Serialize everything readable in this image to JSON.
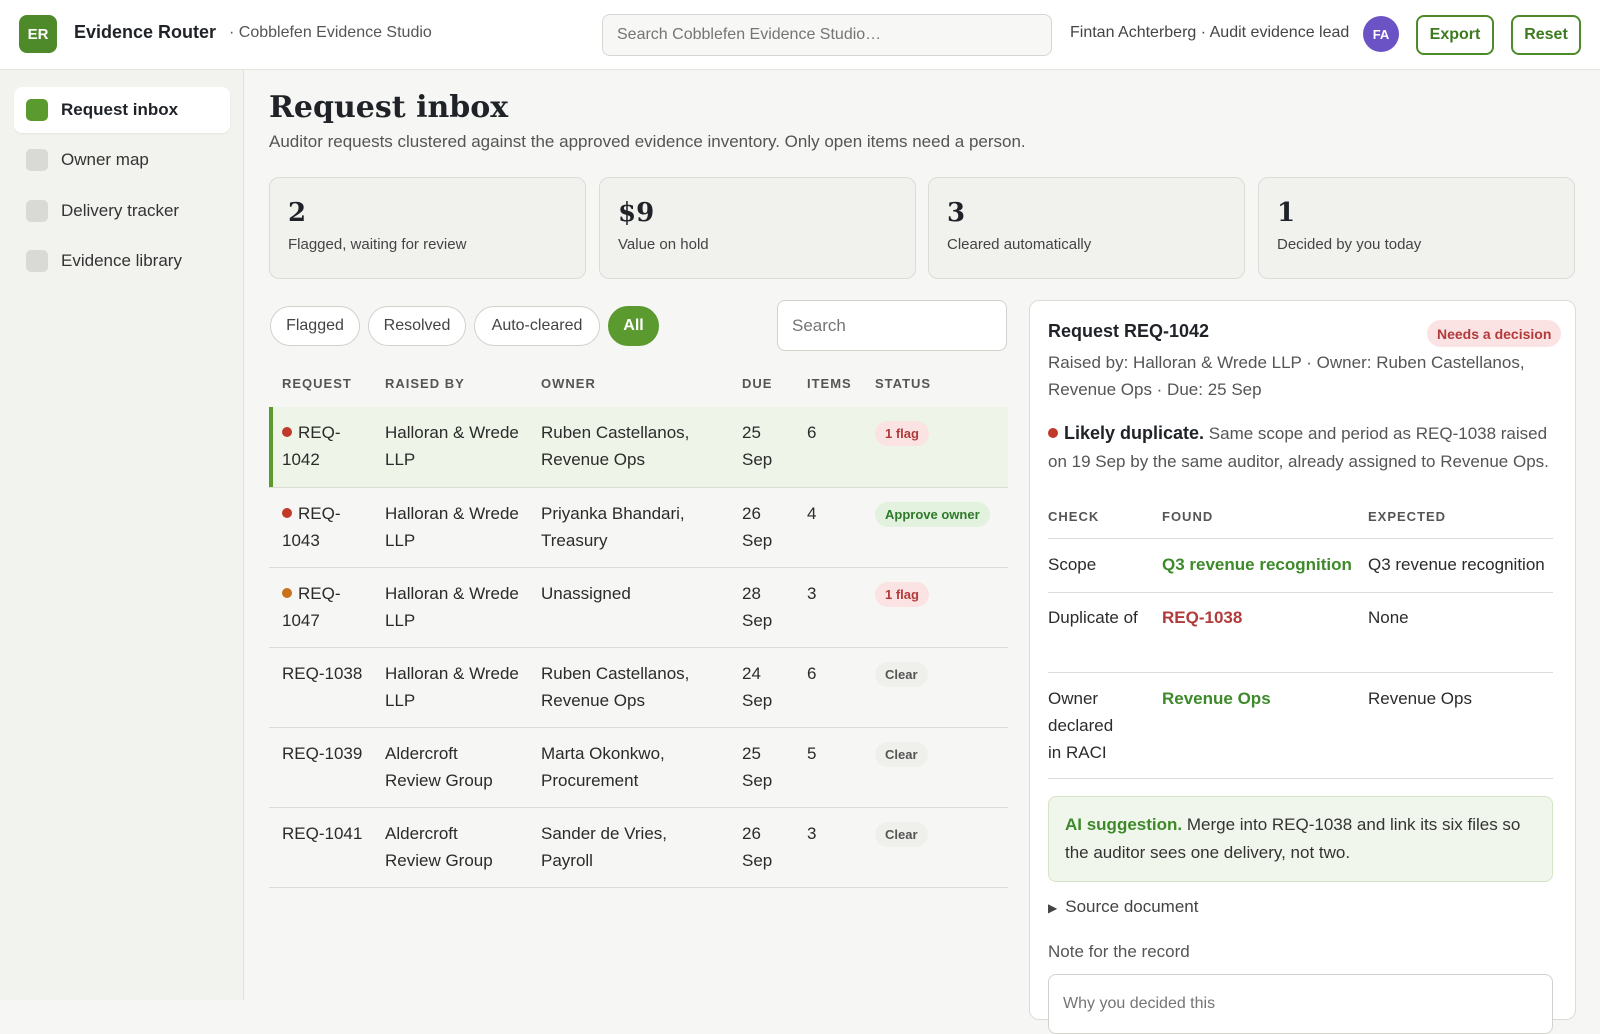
{
  "app": {
    "logo_initials": "ER",
    "name": "Evidence Router",
    "workspace": "· Cobblefen Evidence Studio",
    "search_placeholder": "Search Cobblefen Evidence Studio…",
    "user": "Fintan Achterberg · Audit evidence lead",
    "user_initials": "FA",
    "export_label": "Export",
    "reset_label": "Reset"
  },
  "sidebar": {
    "items": [
      {
        "label": "Request inbox",
        "active": true
      },
      {
        "label": "Owner map",
        "active": false
      },
      {
        "label": "Delivery tracker",
        "active": false
      },
      {
        "label": "Evidence library",
        "active": false
      }
    ]
  },
  "page": {
    "title": "Request inbox",
    "subtitle": "Auditor requests clustered against the approved evidence inventory. Only open items need a person."
  },
  "stats": [
    {
      "value": "2",
      "label": "Flagged, waiting for review"
    },
    {
      "value": "$9",
      "label": "Value on hold"
    },
    {
      "value": "3",
      "label": "Cleared automatically"
    },
    {
      "value": "1",
      "label": "Decided by you today"
    }
  ],
  "filters": {
    "chips": [
      {
        "label": "Flagged",
        "active": false
      },
      {
        "label": "Resolved",
        "active": false
      },
      {
        "label": "Auto-cleared",
        "active": false
      },
      {
        "label": "All",
        "active": true
      }
    ],
    "search_placeholder": "Search"
  },
  "table": {
    "headers": [
      "REQUEST",
      "RAISED BY",
      "OWNER",
      "DUE",
      "ITEMS",
      "STATUS"
    ],
    "rows": [
      {
        "request_a": "REQ-",
        "request_b": "1042",
        "raised_a": "Halloran & Wrede",
        "raised_b": "LLP",
        "owner_a": "Ruben Castellanos,",
        "owner_b": "Revenue Ops",
        "due_a": "25",
        "due_b": "Sep",
        "items": "6",
        "status": "1 flag",
        "status_kind": "flag",
        "dot": "#c0392b"
      },
      {
        "request_a": "REQ-",
        "request_b": "1043",
        "raised_a": "Halloran & Wrede",
        "raised_b": "LLP",
        "owner_a": "Priyanka Bhandari,",
        "owner_b": "Treasury",
        "due_a": "26",
        "due_b": "Sep",
        "items": "4",
        "status": "Approve owner",
        "status_kind": "approve",
        "dot": "#c0392b"
      },
      {
        "request_a": "REQ-",
        "request_b": "1047",
        "raised_a": "Halloran & Wrede",
        "raised_b": "LLP",
        "owner_a": "Unassigned",
        "owner_b": "",
        "due_a": "28",
        "due_b": "Sep",
        "items": "3",
        "status": "1 flag",
        "status_kind": "flag",
        "dot": "#c8701e"
      },
      {
        "request_a": "REQ-1038",
        "request_b": "",
        "raised_a": "Halloran & Wrede",
        "raised_b": "LLP",
        "owner_a": "Ruben Castellanos,",
        "owner_b": "Revenue Ops",
        "due_a": "24",
        "due_b": "Sep",
        "items": "6",
        "status": "Clear",
        "status_kind": "clear",
        "dot": ""
      },
      {
        "request_a": "REQ-1039",
        "request_b": "",
        "raised_a": "Aldercroft",
        "raised_b": "Review Group",
        "owner_a": "Marta Okonkwo,",
        "owner_b": "Procurement",
        "due_a": "25",
        "due_b": "Sep",
        "items": "5",
        "status": "Clear",
        "status_kind": "clear",
        "dot": ""
      },
      {
        "request_a": "REQ-1041",
        "request_b": "",
        "raised_a": "Aldercroft",
        "raised_b": "Review Group",
        "owner_a": "Sander de Vries,",
        "owner_b": "Payroll",
        "due_a": "26",
        "due_b": "Sep",
        "items": "3",
        "status": "Clear",
        "status_kind": "clear",
        "dot": ""
      }
    ]
  },
  "detail": {
    "title": "Request REQ-1042",
    "badge": "Needs a decision",
    "meta": "Raised by: Halloran & Wrede LLP · Owner: Ruben Castellanos, Revenue Ops · Due: 25 Sep",
    "alert_title": "Likely duplicate.",
    "alert_text": " Same scope and period as REQ-1038 raised on 19 Sep by the same auditor, already assigned to Revenue Ops.",
    "check_headers": [
      "CHECK",
      "FOUND",
      "EXPECTED"
    ],
    "checks": [
      {
        "check": "Scope",
        "found": "Q3 revenue recognition",
        "expected": "Q3 revenue recognition",
        "ok": true
      },
      {
        "check": "Duplicate of",
        "found": "REQ-1038",
        "expected": "None",
        "ok": false
      },
      {
        "check": "Owner declared in RACI",
        "found": "Revenue Ops",
        "expected": "Revenue Ops",
        "ok": true
      }
    ],
    "ai_label": "AI suggestion.",
    "ai_text": " Merge into REQ-1038 and link its six files so the auditor sees one delivery, not two.",
    "source_label": "Source document",
    "note_label": "Note for the record",
    "note_placeholder": "Why you decided this"
  }
}
